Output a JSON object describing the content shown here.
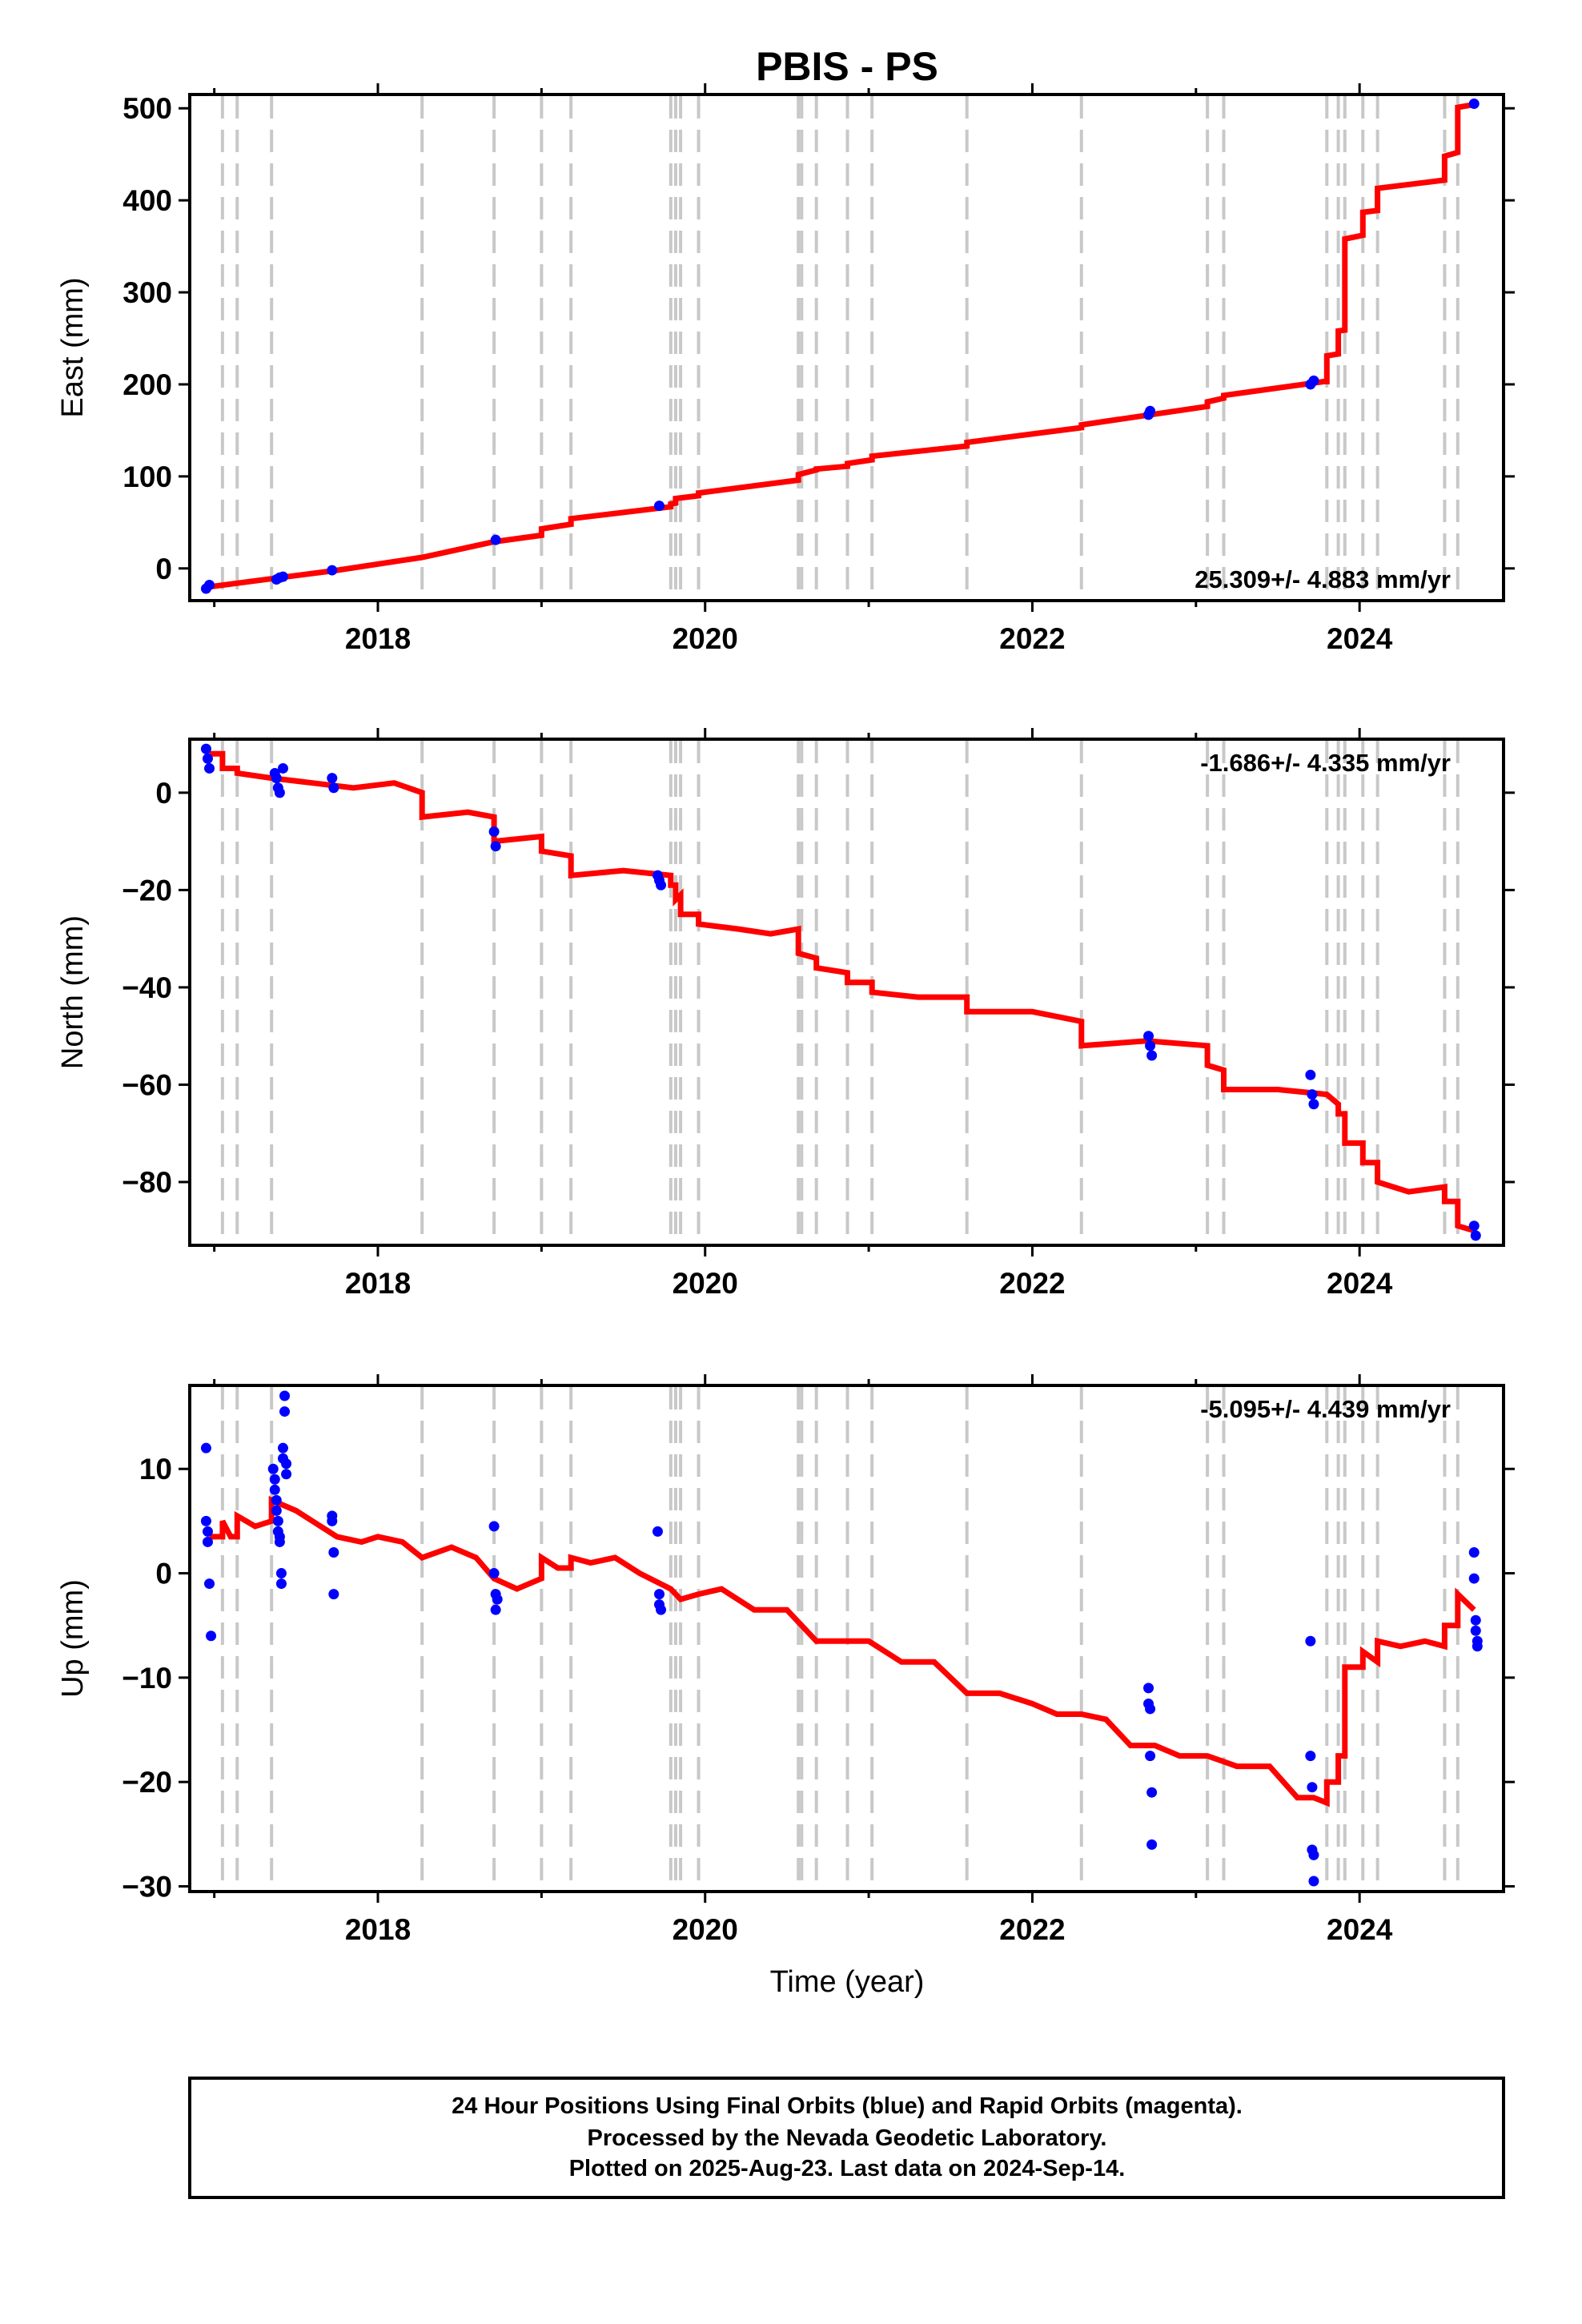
{
  "title": "PBIS - PS",
  "xlabel": "Time (year)",
  "footer": {
    "line1": "24 Hour Positions Using Final Orbits (blue) and Rapid Orbits (magenta).",
    "line2": "Processed by the Nevada Geodetic Laboratory.",
    "line3": "Plotted on 2025-Aug-23. Last data on 2024-Sep-14."
  },
  "colors": {
    "model": "#ff0000",
    "points": "#0000ff",
    "break_lines": "#c8c8c8",
    "frame": "#000000"
  },
  "chart_data": [
    {
      "type": "scatter",
      "component": "east",
      "ylabel": "East (mm)",
      "rate": "25.309+/- 4.883 mm/yr",
      "rate_position": "bottom-right",
      "xlim": [
        2016.85,
        2024.88
      ],
      "ylim": [
        -35,
        515
      ],
      "x_ticks": [
        2018,
        2020,
        2022,
        2024
      ],
      "y_ticks": [
        0,
        100,
        200,
        300,
        400,
        500
      ],
      "break_lines": [
        2017.05,
        2017.14,
        2017.35,
        2018.27,
        2018.71,
        2019.0,
        2019.18,
        2019.79,
        2019.82,
        2019.85,
        2019.96,
        2020.57,
        2020.59,
        2020.68,
        2020.87,
        2021.02,
        2021.6,
        2022.3,
        2023.07,
        2023.17,
        2023.8,
        2023.87,
        2023.91,
        2024.02,
        2024.11,
        2024.52,
        2024.6
      ],
      "model": {
        "x": [
          2016.97,
          2017.1,
          2017.4,
          2017.75,
          2018.27,
          2018.27,
          2018.71,
          2018.71,
          2019.0,
          2019.0,
          2019.18,
          2019.18,
          2019.79,
          2019.79,
          2019.82,
          2019.82,
          2019.96,
          2019.96,
          2020.57,
          2020.57,
          2020.68,
          2020.68,
          2020.87,
          2020.87,
          2021.02,
          2021.02,
          2021.6,
          2021.6,
          2022.3,
          2022.3,
          2023.07,
          2023.07,
          2023.17,
          2023.17,
          2023.78,
          2023.8,
          2023.8,
          2023.87,
          2023.87,
          2023.91,
          2023.91,
          2024.02,
          2024.02,
          2024.11,
          2024.11,
          2024.52,
          2024.52,
          2024.6,
          2024.6,
          2024.7
        ],
        "y": [
          -20,
          -17,
          -10,
          -2,
          12,
          12,
          29,
          29,
          36,
          43,
          48,
          54,
          67,
          70,
          71,
          76,
          79,
          82,
          96,
          102,
          107,
          108,
          111,
          114,
          118,
          122,
          133,
          137,
          153,
          156,
          176,
          181,
          185,
          188,
          203,
          203,
          231,
          233,
          258,
          259,
          358,
          362,
          387,
          389,
          413,
          422,
          448,
          452,
          501,
          504
        ]
      },
      "points": {
        "x": [
          2016.95,
          2016.97,
          2017.38,
          2017.4,
          2017.42,
          2017.72,
          2018.72,
          2019.72,
          2022.71,
          2022.72,
          2023.7,
          2023.72,
          2024.7
        ],
        "y": [
          -22,
          -18,
          -12,
          -10,
          -9,
          -2,
          31,
          68,
          167,
          171,
          200,
          204,
          505
        ]
      }
    },
    {
      "type": "scatter",
      "component": "north",
      "ylabel": "North (mm)",
      "rate": "-1.686+/- 4.335 mm/yr",
      "rate_position": "top-right",
      "xlim": [
        2016.85,
        2024.88
      ],
      "ylim": [
        -93,
        11
      ],
      "x_ticks": [
        2018,
        2020,
        2022,
        2024
      ],
      "y_ticks": [
        0,
        -20,
        -40,
        -60,
        -80
      ],
      "break_lines": [
        2017.05,
        2017.14,
        2017.35,
        2018.27,
        2018.71,
        2019.0,
        2019.18,
        2019.79,
        2019.82,
        2019.85,
        2019.96,
        2020.57,
        2020.59,
        2020.68,
        2020.87,
        2021.02,
        2021.6,
        2022.3,
        2023.07,
        2023.17,
        2023.8,
        2023.87,
        2023.91,
        2024.02,
        2024.11,
        2024.52,
        2024.6
      ],
      "model": {
        "x": [
          2016.97,
          2017.05,
          2017.05,
          2017.14,
          2017.14,
          2017.35,
          2017.6,
          2017.85,
          2018.1,
          2018.27,
          2018.27,
          2018.55,
          2018.71,
          2018.71,
          2019.0,
          2019.0,
          2019.18,
          2019.18,
          2019.5,
          2019.79,
          2019.79,
          2019.82,
          2019.82,
          2019.85,
          2019.85,
          2019.96,
          2019.96,
          2020.2,
          2020.4,
          2020.57,
          2020.57,
          2020.68,
          2020.68,
          2020.87,
          2020.87,
          2021.02,
          2021.02,
          2021.3,
          2021.6,
          2021.6,
          2022.0,
          2022.3,
          2022.3,
          2022.7,
          2023.07,
          2023.07,
          2023.17,
          2023.17,
          2023.5,
          2023.8,
          2023.8,
          2023.87,
          2023.87,
          2023.91,
          2023.91,
          2024.02,
          2024.02,
          2024.11,
          2024.11,
          2024.3,
          2024.52,
          2024.52,
          2024.6,
          2024.6,
          2024.7
        ],
        "y": [
          8,
          8,
          5,
          5,
          4,
          3,
          2,
          1,
          2,
          0,
          -5,
          -4,
          -5,
          -10,
          -9,
          -12,
          -13,
          -17,
          -16,
          -17,
          -19,
          -19,
          -22,
          -21,
          -25,
          -25,
          -27,
          -28,
          -29,
          -28,
          -33,
          -34,
          -36,
          -37,
          -39,
          -39,
          -41,
          -42,
          -42,
          -45,
          -45,
          -47,
          -52,
          -51,
          -52,
          -56,
          -57,
          -61,
          -61,
          -62,
          -62,
          -64,
          -66,
          -66,
          -72,
          -72,
          -76,
          -76,
          -80,
          -82,
          -81,
          -84,
          -84,
          -89,
          -90
        ]
      },
      "points": {
        "x": [
          2016.95,
          2016.96,
          2016.97,
          2017.37,
          2017.38,
          2017.39,
          2017.4,
          2017.42,
          2017.72,
          2017.73,
          2018.71,
          2018.72,
          2019.71,
          2019.72,
          2019.73,
          2022.71,
          2022.72,
          2022.73,
          2023.7,
          2023.71,
          2023.72,
          2024.7,
          2024.71
        ],
        "y": [
          9,
          7,
          5,
          4,
          3,
          1,
          0,
          5,
          3,
          1,
          -8,
          -11,
          -17,
          -18,
          -19,
          -50,
          -52,
          -54,
          -58,
          -62,
          -64,
          -89,
          -91
        ]
      }
    },
    {
      "type": "scatter",
      "component": "up",
      "ylabel": "Up (mm)",
      "rate": "-5.095+/- 4.439 mm/yr",
      "rate_position": "top-right",
      "xlim": [
        2016.85,
        2024.88
      ],
      "ylim": [
        -30.5,
        18
      ],
      "x_ticks": [
        2018,
        2020,
        2022,
        2024
      ],
      "y_ticks": [
        10,
        0,
        -10,
        -20,
        -30
      ],
      "break_lines": [
        2017.05,
        2017.14,
        2017.35,
        2018.27,
        2018.71,
        2019.0,
        2019.18,
        2019.79,
        2019.82,
        2019.85,
        2019.96,
        2020.57,
        2020.59,
        2020.68,
        2020.87,
        2021.02,
        2021.6,
        2022.3,
        2023.07,
        2023.17,
        2023.8,
        2023.87,
        2023.91,
        2024.02,
        2024.11,
        2024.52,
        2024.6
      ],
      "model": {
        "x": [
          2016.97,
          2017.05,
          2017.05,
          2017.1,
          2017.14,
          2017.14,
          2017.25,
          2017.35,
          2017.35,
          2017.5,
          2017.65,
          2017.75,
          2017.9,
          2018.0,
          2018.15,
          2018.27,
          2018.45,
          2018.6,
          2018.71,
          2018.85,
          2019.0,
          2019.0,
          2019.1,
          2019.18,
          2019.18,
          2019.3,
          2019.45,
          2019.6,
          2019.79,
          2019.85,
          2019.96,
          2020.1,
          2020.3,
          2020.5,
          2020.68,
          2020.87,
          2021.0,
          2021.2,
          2021.4,
          2021.6,
          2021.8,
          2022.0,
          2022.15,
          2022.3,
          2022.45,
          2022.6,
          2022.75,
          2022.9,
          2023.07,
          2023.25,
          2023.45,
          2023.62,
          2023.72,
          2023.8,
          2023.8,
          2023.87,
          2023.87,
          2023.91,
          2023.91,
          2024.02,
          2024.02,
          2024.11,
          2024.11,
          2024.25,
          2024.4,
          2024.52,
          2024.52,
          2024.6,
          2024.6,
          2024.7
        ],
        "y": [
          3.5,
          3.5,
          5,
          3.5,
          3.5,
          5.5,
          4.5,
          5,
          7,
          6,
          4.5,
          3.5,
          3,
          3.5,
          3,
          1.5,
          2.5,
          1.5,
          -0.5,
          -1.5,
          -0.5,
          1.5,
          0.5,
          0.5,
          1.5,
          1,
          1.5,
          0,
          -1.5,
          -2.5,
          -2,
          -1.5,
          -3.5,
          -3.5,
          -6.5,
          -6.5,
          -6.5,
          -8.5,
          -8.5,
          -11.5,
          -11.5,
          -12.5,
          -13.5,
          -13.5,
          -14,
          -16.5,
          -16.5,
          -17.5,
          -17.5,
          -18.5,
          -18.5,
          -21.5,
          -21.5,
          -22,
          -20,
          -20,
          -17.5,
          -17.5,
          -9,
          -9,
          -7.5,
          -8.5,
          -6.5,
          -7,
          -6.5,
          -7,
          -5,
          -5,
          -2,
          -3.5
        ]
      },
      "points": {
        "x": [
          2016.95,
          2016.95,
          2016.96,
          2016.96,
          2016.97,
          2016.98,
          2017.36,
          2017.37,
          2017.37,
          2017.38,
          2017.38,
          2017.39,
          2017.39,
          2017.4,
          2017.4,
          2017.41,
          2017.41,
          2017.42,
          2017.42,
          2017.43,
          2017.43,
          2017.44,
          2017.44,
          2017.72,
          2017.72,
          2017.73,
          2017.73,
          2018.71,
          2018.71,
          2018.72,
          2018.72,
          2018.73,
          2019.71,
          2019.72,
          2019.72,
          2019.73,
          2022.71,
          2022.71,
          2022.72,
          2022.72,
          2022.73,
          2022.73,
          2023.7,
          2023.7,
          2023.71,
          2023.71,
          2023.72,
          2023.72,
          2024.7,
          2024.7,
          2024.71,
          2024.71,
          2024.72,
          2024.72
        ],
        "y": [
          12,
          5,
          4,
          3,
          -1,
          -6,
          10,
          9,
          8,
          7,
          6,
          5,
          4,
          3.5,
          3,
          0,
          -1,
          12,
          11,
          15.5,
          17,
          10.5,
          9.5,
          5.5,
          5,
          2,
          -2,
          4.5,
          0,
          -2,
          -3.5,
          -2.5,
          4,
          -2,
          -3,
          -3.5,
          -11,
          -12.5,
          -13,
          -17.5,
          -21,
          -26,
          -6.5,
          -17.5,
          -20.5,
          -26.5,
          -27,
          -29.5,
          2,
          -0.5,
          -4.5,
          -5.5,
          -6.5,
          -7
        ]
      }
    }
  ]
}
